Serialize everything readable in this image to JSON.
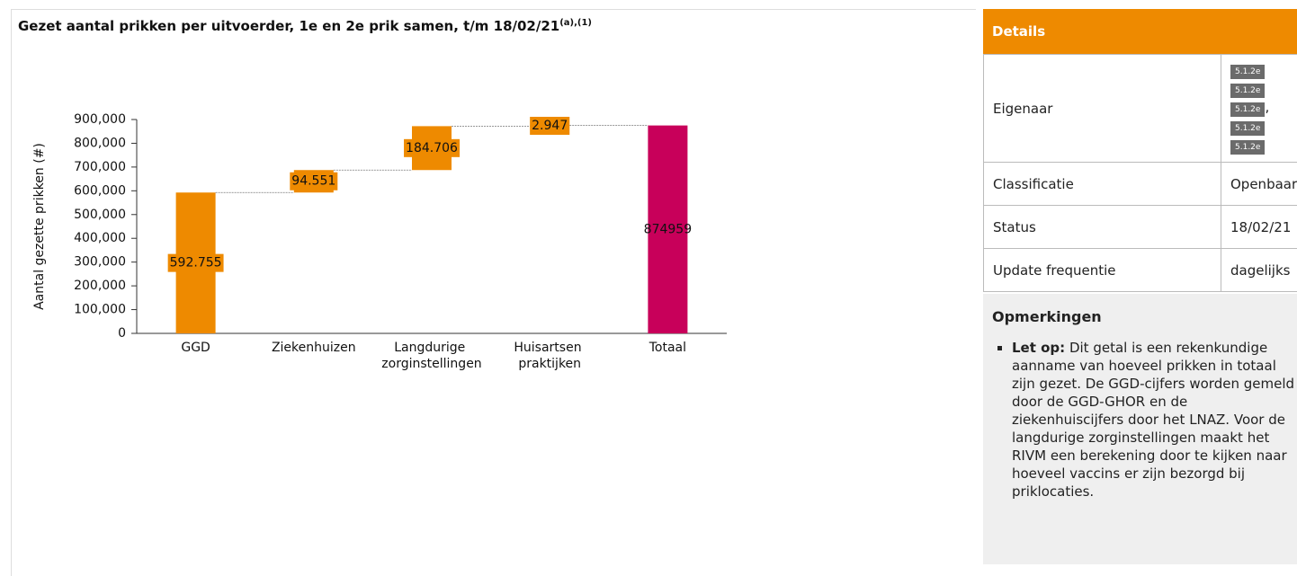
{
  "chart_data": {
    "type": "waterfall",
    "title": "Gezet aantal prikken per uitvoerder, 1e en 2e prik samen, t/m 18/02/21",
    "title_note": "(a),(1)",
    "y_label": "Aantal gezette prikken (#)",
    "categories": [
      "GGD",
      "Ziekenhuizen",
      "Langdurige zorginstellingen",
      "Huisartsen praktijken",
      "Totaal"
    ],
    "values": [
      592755,
      94551,
      184706,
      2947,
      874959
    ],
    "value_labels": [
      "592.755",
      "94.551",
      "184.706",
      "2.947",
      "874959"
    ],
    "is_total": [
      false,
      false,
      false,
      false,
      true
    ],
    "color": "#ee8a00",
    "total_color": "#c8005a",
    "ylim": [
      0,
      900000
    ],
    "yticks": [
      0,
      {
        "value": 100000,
        "label": "100,000"
      },
      {
        "value": 200000,
        "label": "200,000"
      },
      {
        "value": 300000,
        "label": "300,000"
      },
      {
        "value": 400000,
        "label": "400,000"
      },
      {
        "value": 500000,
        "label": "500,000"
      },
      {
        "value": 600000,
        "label": "600,000"
      },
      {
        "value": 700000,
        "label": "700,000"
      },
      {
        "value": 800000,
        "label": "800,000"
      },
      {
        "value": 900000,
        "label": "900,000"
      }
    ]
  },
  "details": {
    "header": "Details",
    "rows": [
      {
        "label": "Eigenaar",
        "redactions": [
          "5.1.2e",
          "5.1.2e",
          "5.1.2e",
          "5.1.2e",
          "5.1.2e"
        ],
        "separator": ","
      },
      {
        "label": "Classificatie",
        "value": "Openbaar"
      },
      {
        "label": "Status",
        "value": "18/02/21"
      },
      {
        "label": "Update frequentie",
        "value": "dagelijks"
      }
    ]
  },
  "remarks": {
    "title": "Opmerkingen",
    "items": [
      {
        "lead": "Let op:",
        "text": "Dit getal is een rekenkundige aanname van hoeveel prikken in totaal zijn gezet. De GGD-cijfers worden gemeld door de GGD-GHOR en de ziekenhuiscijfers door het LNAZ. Voor de langdurige zorginstellingen maakt het RIVM een berekening door te kijken naar hoeveel vaccins er zijn bezorgd bij priklocaties."
      }
    ]
  }
}
